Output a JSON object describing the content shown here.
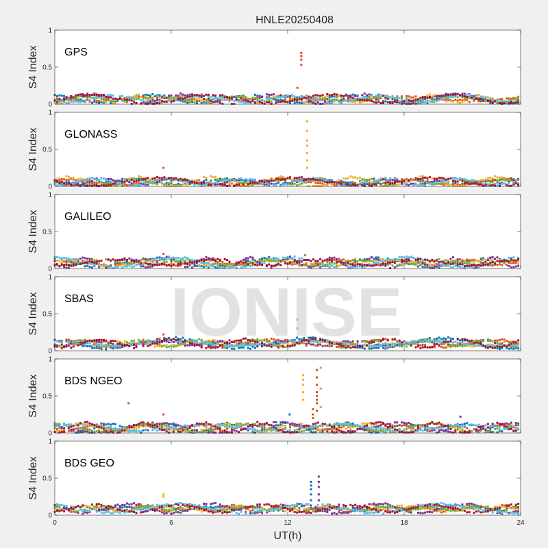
{
  "figure": {
    "title": "HNLE20250408",
    "watermark": "IONISE",
    "xlabel": "UT(h)",
    "background": "#f0f0f0",
    "axes_background": "#ffffff"
  },
  "chart_data": {
    "type": "scatter",
    "xlim": [
      0,
      24
    ],
    "ylim": [
      0,
      1
    ],
    "x_ticks": [
      "0",
      "6",
      "12",
      "18",
      "24"
    ],
    "y_ticks": [
      "0",
      "0.5",
      "1"
    ],
    "ylabel": "S4 Index",
    "series_colors": [
      "#0072BD",
      "#D95319",
      "#EDB120",
      "#7E2F8E",
      "#77AC30",
      "#4DBEEE",
      "#A2142F"
    ],
    "panels": [
      {
        "label": "GPS",
        "baseline": 0.07,
        "spikes": [
          {
            "x": 12.7,
            "values": [
              0.53,
              0.6,
              0.65,
              0.69
            ],
            "color": "#D95319"
          },
          {
            "x": 12.5,
            "values": [
              0.22
            ],
            "color": "#D95319"
          }
        ]
      },
      {
        "label": "GLONASS",
        "baseline": 0.06,
        "spikes": [
          {
            "x": 13.0,
            "values": [
              0.25,
              0.35,
              0.45,
              0.55,
              0.62,
              0.75,
              0.88
            ],
            "color": "#EDB120"
          },
          {
            "x": 5.6,
            "values": [
              0.25
            ],
            "color": "#D95319"
          }
        ]
      },
      {
        "label": "GALILEO",
        "baseline": 0.08,
        "spikes": [
          {
            "x": 5.6,
            "values": [
              0.2
            ],
            "color": "#D95319"
          },
          {
            "x": 12.9,
            "values": [
              0.18
            ],
            "color": "#77AC30"
          }
        ]
      },
      {
        "label": "SBAS",
        "baseline": 0.1,
        "spikes": [
          {
            "x": 12.5,
            "values": [
              0.3,
              0.42
            ],
            "color": "#0072BD"
          },
          {
            "x": 5.6,
            "values": [
              0.22
            ],
            "color": "#D95319"
          }
        ]
      },
      {
        "label": "BDS NGEO",
        "baseline": 0.07,
        "spikes": [
          {
            "x": 12.8,
            "values": [
              0.45,
              0.55,
              0.65,
              0.72,
              0.78
            ],
            "color": "#EDB120"
          },
          {
            "x": 13.5,
            "values": [
              0.3,
              0.4,
              0.45,
              0.5,
              0.55,
              0.65,
              0.75,
              0.85
            ],
            "color": "#D95319"
          },
          {
            "x": 13.7,
            "values": [
              0.35,
              0.6,
              0.88
            ],
            "color": "#4DBEEE"
          },
          {
            "x": 13.3,
            "values": [
              0.2,
              0.25,
              0.32
            ],
            "color": "#D95319"
          },
          {
            "x": 3.8,
            "values": [
              0.4
            ],
            "color": "#D95319"
          },
          {
            "x": 5.6,
            "values": [
              0.25
            ],
            "color": "#D95319"
          },
          {
            "x": 12.1,
            "values": [
              0.25
            ],
            "color": "#0072BD"
          },
          {
            "x": 20.9,
            "values": [
              0.22
            ],
            "color": "#7E2F8E"
          }
        ]
      },
      {
        "label": "BDS GEO",
        "baseline": 0.09,
        "spikes": [
          {
            "x": 13.2,
            "values": [
              0.2,
              0.28,
              0.35,
              0.4,
              0.45
            ],
            "color": "#0072BD"
          },
          {
            "x": 13.6,
            "values": [
              0.2,
              0.28,
              0.38,
              0.45,
              0.52
            ],
            "color": "#7E2F8E"
          },
          {
            "x": 5.6,
            "values": [
              0.25,
              0.28
            ],
            "color": "#EDB120"
          }
        ]
      }
    ]
  }
}
